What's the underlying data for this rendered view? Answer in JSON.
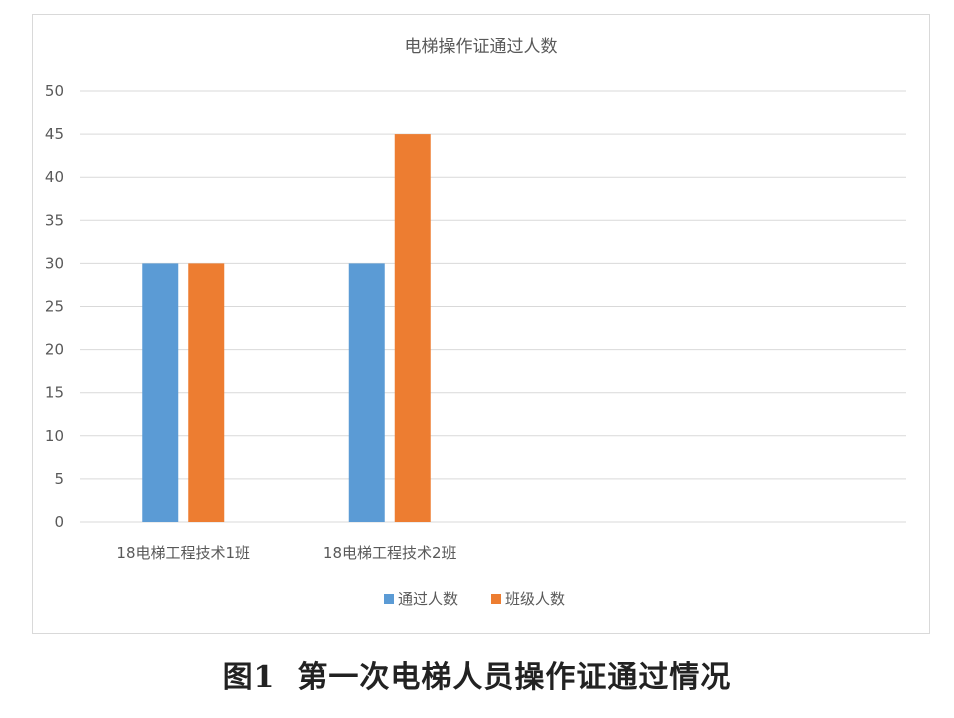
{
  "chart_data": {
    "type": "bar",
    "title": "电梯操作证通过人数",
    "categories": [
      "18电梯工程技术1班",
      "18电梯工程技术2班"
    ],
    "series": [
      {
        "name": "通过人数",
        "values": [
          30,
          30
        ],
        "color": "#5b9bd5"
      },
      {
        "name": "班级人数",
        "values": [
          30,
          45
        ],
        "color": "#ed7d31"
      }
    ],
    "ylim": [
      0,
      50
    ],
    "yticks": [
      0,
      5,
      10,
      15,
      20,
      25,
      30,
      35,
      40,
      45,
      50
    ],
    "grid": true,
    "legend_position": "bottom"
  },
  "caption": {
    "label": "图1",
    "text": "第一次电梯人员操作证通过情况"
  }
}
